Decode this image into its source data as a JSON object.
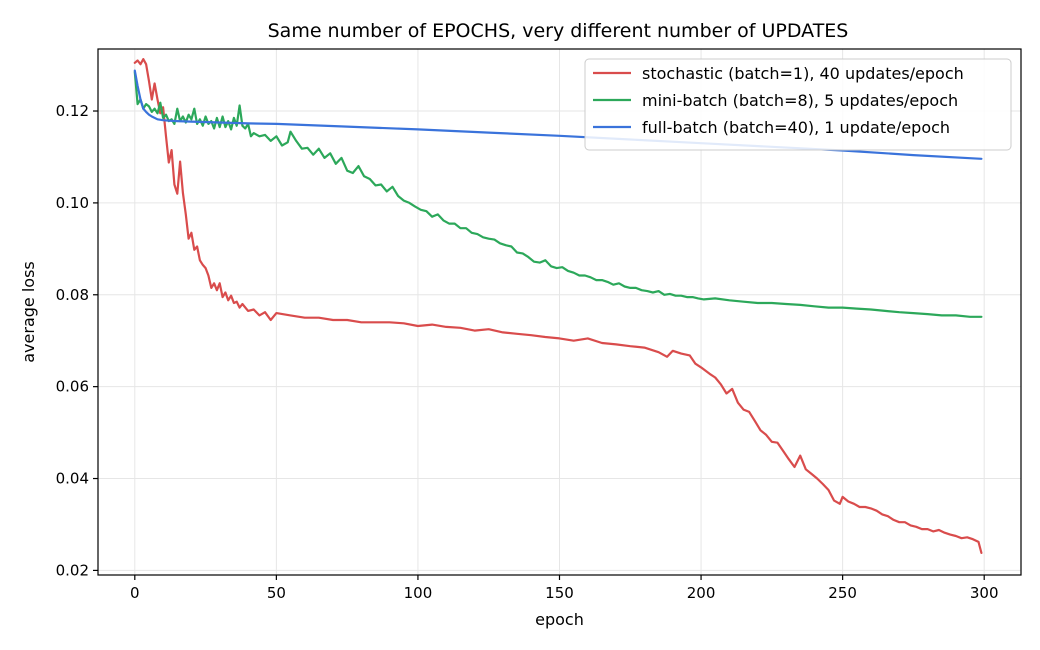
{
  "chart_data": {
    "type": "line",
    "title": "Same number of EPOCHS, very different number of UPDATES",
    "xlabel": "epoch",
    "ylabel": "average loss",
    "xlim": [
      -13,
      313
    ],
    "ylim": [
      0.019,
      0.1335
    ],
    "xticks": [
      0,
      50,
      100,
      150,
      200,
      250,
      300
    ],
    "yticks": [
      0.02,
      0.04,
      0.06,
      0.08,
      0.1,
      0.12
    ],
    "ytick_labels": [
      "0.02",
      "0.04",
      "0.06",
      "0.08",
      "0.10",
      "0.12"
    ],
    "grid": true,
    "legend_position": "top-right",
    "series": [
      {
        "name": "stochastic (batch=1), 40 updates/epoch",
        "color": "#d94c4c",
        "points": [
          [
            0,
            0.1305
          ],
          [
            1,
            0.131
          ],
          [
            2,
            0.1302
          ],
          [
            3,
            0.1313
          ],
          [
            4,
            0.1302
          ],
          [
            5,
            0.1265
          ],
          [
            6,
            0.1225
          ],
          [
            7,
            0.126
          ],
          [
            8,
            0.1225
          ],
          [
            9,
            0.1195
          ],
          [
            10,
            0.1208
          ],
          [
            11,
            0.1145
          ],
          [
            12,
            0.1088
          ],
          [
            13,
            0.1115
          ],
          [
            14,
            0.104
          ],
          [
            15,
            0.102
          ],
          [
            16,
            0.109
          ],
          [
            17,
            0.1022
          ],
          [
            18,
            0.0975
          ],
          [
            19,
            0.0922
          ],
          [
            20,
            0.0935
          ],
          [
            21,
            0.0898
          ],
          [
            22,
            0.0905
          ],
          [
            23,
            0.0875
          ],
          [
            24,
            0.0865
          ],
          [
            25,
            0.0858
          ],
          [
            26,
            0.0842
          ],
          [
            27,
            0.0815
          ],
          [
            28,
            0.0825
          ],
          [
            29,
            0.081
          ],
          [
            30,
            0.0825
          ],
          [
            31,
            0.0795
          ],
          [
            32,
            0.0805
          ],
          [
            33,
            0.0788
          ],
          [
            34,
            0.0798
          ],
          [
            35,
            0.0782
          ],
          [
            36,
            0.0785
          ],
          [
            37,
            0.0772
          ],
          [
            38,
            0.078
          ],
          [
            40,
            0.0765
          ],
          [
            42,
            0.0768
          ],
          [
            44,
            0.0755
          ],
          [
            46,
            0.0762
          ],
          [
            48,
            0.0745
          ],
          [
            50,
            0.076
          ],
          [
            55,
            0.0755
          ],
          [
            60,
            0.075
          ],
          [
            65,
            0.075
          ],
          [
            70,
            0.0745
          ],
          [
            75,
            0.0745
          ],
          [
            80,
            0.074
          ],
          [
            85,
            0.074
          ],
          [
            90,
            0.074
          ],
          [
            95,
            0.0738
          ],
          [
            100,
            0.0732
          ],
          [
            105,
            0.0735
          ],
          [
            110,
            0.073
          ],
          [
            115,
            0.0728
          ],
          [
            120,
            0.0722
          ],
          [
            125,
            0.0725
          ],
          [
            130,
            0.0718
          ],
          [
            135,
            0.0715
          ],
          [
            140,
            0.0712
          ],
          [
            145,
            0.0708
          ],
          [
            150,
            0.0705
          ],
          [
            155,
            0.07
          ],
          [
            160,
            0.0705
          ],
          [
            165,
            0.0695
          ],
          [
            170,
            0.0692
          ],
          [
            175,
            0.0688
          ],
          [
            180,
            0.0685
          ],
          [
            185,
            0.0675
          ],
          [
            188,
            0.0665
          ],
          [
            190,
            0.0678
          ],
          [
            193,
            0.0672
          ],
          [
            196,
            0.0668
          ],
          [
            198,
            0.065
          ],
          [
            200,
            0.0642
          ],
          [
            203,
            0.0628
          ],
          [
            205,
            0.062
          ],
          [
            207,
            0.0605
          ],
          [
            209,
            0.0585
          ],
          [
            211,
            0.0595
          ],
          [
            213,
            0.0565
          ],
          [
            215,
            0.055
          ],
          [
            217,
            0.0545
          ],
          [
            219,
            0.0525
          ],
          [
            221,
            0.0505
          ],
          [
            223,
            0.0495
          ],
          [
            225,
            0.048
          ],
          [
            227,
            0.0478
          ],
          [
            229,
            0.046
          ],
          [
            231,
            0.0442
          ],
          [
            233,
            0.0425
          ],
          [
            235,
            0.045
          ],
          [
            237,
            0.042
          ],
          [
            239,
            0.041
          ],
          [
            241,
            0.04
          ],
          [
            243,
            0.0388
          ],
          [
            245,
            0.0375
          ],
          [
            247,
            0.0352
          ],
          [
            249,
            0.0345
          ],
          [
            250,
            0.036
          ],
          [
            252,
            0.035
          ],
          [
            254,
            0.0345
          ],
          [
            256,
            0.0338
          ],
          [
            258,
            0.0338
          ],
          [
            260,
            0.0335
          ],
          [
            262,
            0.033
          ],
          [
            264,
            0.0322
          ],
          [
            266,
            0.0318
          ],
          [
            268,
            0.031
          ],
          [
            270,
            0.0305
          ],
          [
            272,
            0.0305
          ],
          [
            274,
            0.0298
          ],
          [
            276,
            0.0295
          ],
          [
            278,
            0.029
          ],
          [
            280,
            0.029
          ],
          [
            282,
            0.0285
          ],
          [
            284,
            0.0288
          ],
          [
            286,
            0.0282
          ],
          [
            288,
            0.0278
          ],
          [
            290,
            0.0275
          ],
          [
            292,
            0.027
          ],
          [
            294,
            0.0272
          ],
          [
            296,
            0.0268
          ],
          [
            298,
            0.0262
          ],
          [
            299,
            0.0238
          ]
        ]
      },
      {
        "name": "mini-batch (batch=8), 5 updates/epoch",
        "color": "#2ca85a",
        "points": [
          [
            0,
            0.1285
          ],
          [
            1,
            0.1215
          ],
          [
            2,
            0.1225
          ],
          [
            3,
            0.1205
          ],
          [
            4,
            0.1215
          ],
          [
            5,
            0.121
          ],
          [
            6,
            0.1198
          ],
          [
            7,
            0.1205
          ],
          [
            8,
            0.1195
          ],
          [
            9,
            0.1218
          ],
          [
            10,
            0.1185
          ],
          [
            11,
            0.1192
          ],
          [
            12,
            0.1178
          ],
          [
            13,
            0.1182
          ],
          [
            14,
            0.1172
          ],
          [
            15,
            0.1205
          ],
          [
            16,
            0.1178
          ],
          [
            17,
            0.1188
          ],
          [
            18,
            0.1175
          ],
          [
            19,
            0.1192
          ],
          [
            20,
            0.1182
          ],
          [
            21,
            0.1205
          ],
          [
            22,
            0.1172
          ],
          [
            23,
            0.1182
          ],
          [
            24,
            0.1168
          ],
          [
            25,
            0.1188
          ],
          [
            26,
            0.1172
          ],
          [
            27,
            0.1178
          ],
          [
            28,
            0.1162
          ],
          [
            29,
            0.1185
          ],
          [
            30,
            0.1165
          ],
          [
            31,
            0.1188
          ],
          [
            32,
            0.1165
          ],
          [
            33,
            0.1178
          ],
          [
            34,
            0.116
          ],
          [
            35,
            0.1185
          ],
          [
            36,
            0.1168
          ],
          [
            37,
            0.1212
          ],
          [
            38,
            0.1168
          ],
          [
            39,
            0.1162
          ],
          [
            40,
            0.1172
          ],
          [
            41,
            0.1145
          ],
          [
            42,
            0.1152
          ],
          [
            44,
            0.1145
          ],
          [
            46,
            0.1148
          ],
          [
            48,
            0.1135
          ],
          [
            50,
            0.1145
          ],
          [
            52,
            0.1125
          ],
          [
            54,
            0.1132
          ],
          [
            55,
            0.1155
          ],
          [
            57,
            0.1135
          ],
          [
            59,
            0.1118
          ],
          [
            61,
            0.112
          ],
          [
            63,
            0.1105
          ],
          [
            65,
            0.1118
          ],
          [
            67,
            0.1098
          ],
          [
            69,
            0.1108
          ],
          [
            71,
            0.1085
          ],
          [
            73,
            0.1098
          ],
          [
            75,
            0.107
          ],
          [
            77,
            0.1065
          ],
          [
            79,
            0.108
          ],
          [
            81,
            0.1058
          ],
          [
            83,
            0.1052
          ],
          [
            85,
            0.1038
          ],
          [
            87,
            0.104
          ],
          [
            89,
            0.1025
          ],
          [
            91,
            0.1035
          ],
          [
            93,
            0.1015
          ],
          [
            95,
            0.1005
          ],
          [
            97,
            0.1
          ],
          [
            99,
            0.0992
          ],
          [
            101,
            0.0985
          ],
          [
            103,
            0.0982
          ],
          [
            105,
            0.097
          ],
          [
            107,
            0.0975
          ],
          [
            109,
            0.0962
          ],
          [
            111,
            0.0955
          ],
          [
            113,
            0.0955
          ],
          [
            115,
            0.0945
          ],
          [
            117,
            0.0945
          ],
          [
            119,
            0.0935
          ],
          [
            121,
            0.0932
          ],
          [
            123,
            0.0925
          ],
          [
            125,
            0.0922
          ],
          [
            127,
            0.092
          ],
          [
            129,
            0.0912
          ],
          [
            131,
            0.0908
          ],
          [
            133,
            0.0905
          ],
          [
            135,
            0.0892
          ],
          [
            137,
            0.089
          ],
          [
            139,
            0.0882
          ],
          [
            141,
            0.0872
          ],
          [
            143,
            0.087
          ],
          [
            145,
            0.0875
          ],
          [
            147,
            0.0862
          ],
          [
            149,
            0.0858
          ],
          [
            151,
            0.086
          ],
          [
            153,
            0.0852
          ],
          [
            155,
            0.0848
          ],
          [
            157,
            0.0842
          ],
          [
            159,
            0.0842
          ],
          [
            161,
            0.0838
          ],
          [
            163,
            0.0832
          ],
          [
            165,
            0.0832
          ],
          [
            167,
            0.0828
          ],
          [
            169,
            0.0822
          ],
          [
            171,
            0.0825
          ],
          [
            173,
            0.0818
          ],
          [
            175,
            0.0815
          ],
          [
            177,
            0.0815
          ],
          [
            179,
            0.081
          ],
          [
            181,
            0.0808
          ],
          [
            183,
            0.0805
          ],
          [
            185,
            0.0808
          ],
          [
            187,
            0.08
          ],
          [
            189,
            0.0802
          ],
          [
            191,
            0.0798
          ],
          [
            193,
            0.0798
          ],
          [
            195,
            0.0795
          ],
          [
            197,
            0.0795
          ],
          [
            199,
            0.0792
          ],
          [
            201,
            0.079
          ],
          [
            205,
            0.0792
          ],
          [
            210,
            0.0788
          ],
          [
            215,
            0.0785
          ],
          [
            220,
            0.0782
          ],
          [
            225,
            0.0782
          ],
          [
            230,
            0.078
          ],
          [
            235,
            0.0778
          ],
          [
            240,
            0.0775
          ],
          [
            245,
            0.0772
          ],
          [
            250,
            0.0772
          ],
          [
            255,
            0.077
          ],
          [
            260,
            0.0768
          ],
          [
            265,
            0.0765
          ],
          [
            270,
            0.0762
          ],
          [
            275,
            0.076
          ],
          [
            280,
            0.0758
          ],
          [
            285,
            0.0755
          ],
          [
            290,
            0.0755
          ],
          [
            295,
            0.0752
          ],
          [
            299,
            0.0752
          ]
        ]
      },
      {
        "name": "full-batch (batch=40), 1 update/epoch",
        "color": "#3a73db",
        "points": [
          [
            0,
            0.1288
          ],
          [
            1,
            0.1255
          ],
          [
            2,
            0.1225
          ],
          [
            3,
            0.1205
          ],
          [
            4,
            0.1198
          ],
          [
            5,
            0.1192
          ],
          [
            6,
            0.1188
          ],
          [
            8,
            0.1182
          ],
          [
            10,
            0.118
          ],
          [
            12,
            0.1179
          ],
          [
            15,
            0.1178
          ],
          [
            20,
            0.1177
          ],
          [
            30,
            0.1175
          ],
          [
            40,
            0.1173
          ],
          [
            50,
            0.1172
          ],
          [
            75,
            0.1166
          ],
          [
            100,
            0.116
          ],
          [
            125,
            0.1153
          ],
          [
            150,
            0.1146
          ],
          [
            175,
            0.1138
          ],
          [
            200,
            0.113
          ],
          [
            225,
            0.1122
          ],
          [
            250,
            0.1114
          ],
          [
            275,
            0.1104
          ],
          [
            299,
            0.1096
          ]
        ]
      }
    ]
  }
}
